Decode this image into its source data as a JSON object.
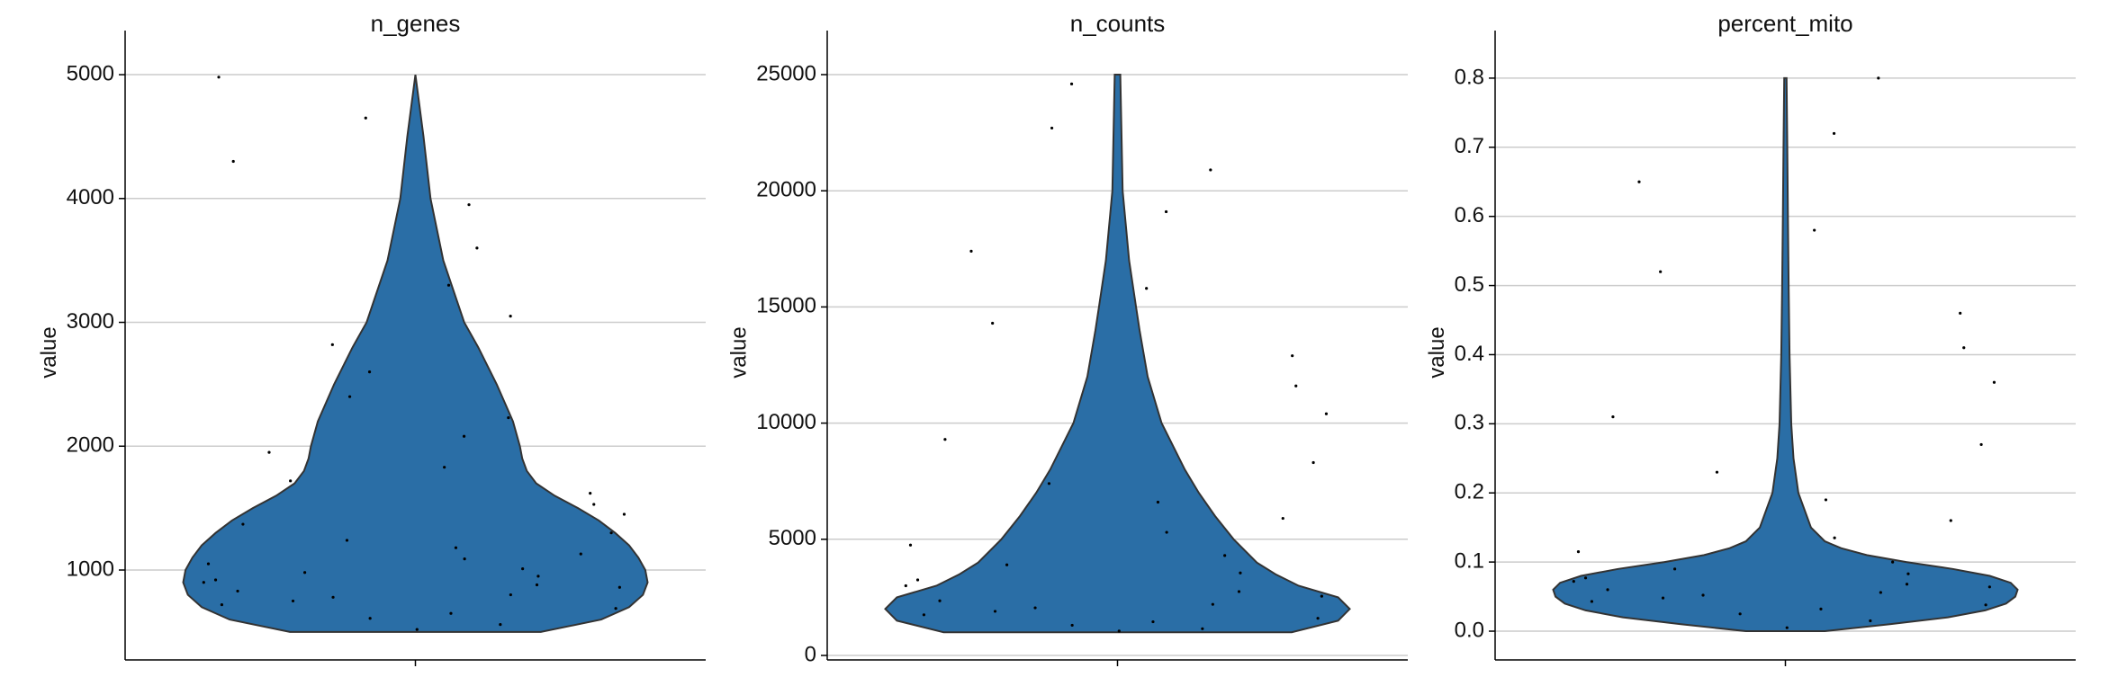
{
  "chart_data": [
    {
      "type": "violin",
      "title": "n_genes",
      "ylabel": "value",
      "ylim": [
        274,
        5240
      ],
      "yticks": [
        1000,
        2000,
        3000,
        4000,
        5000
      ],
      "grid": true,
      "color": "#2a6ea6",
      "point_color": "#000000",
      "violin": {
        "y": [
          500,
          600,
          700,
          800,
          900,
          1000,
          1100,
          1200,
          1300,
          1400,
          1500,
          1600,
          1700,
          1800,
          1900,
          2000,
          2200,
          2500,
          2800,
          3000,
          3500,
          4000,
          4500,
          5000
        ],
        "width": [
          0.54,
          0.8,
          0.92,
          0.98,
          1.0,
          0.99,
          0.96,
          0.92,
          0.86,
          0.79,
          0.7,
          0.6,
          0.52,
          0.48,
          0.46,
          0.45,
          0.42,
          0.35,
          0.27,
          0.21,
          0.12,
          0.065,
          0.035,
          0.0
        ]
      },
      "points": [
        520,
        560,
        610,
        650,
        690,
        720,
        750,
        780,
        800,
        830,
        860,
        880,
        900,
        920,
        950,
        980,
        1010,
        1050,
        1090,
        1130,
        1180,
        1240,
        1300,
        1370,
        1450,
        1530,
        1620,
        1720,
        1830,
        1950,
        2080,
        2230,
        2400,
        2600,
        2820,
        3050,
        3300,
        3600,
        3950,
        4300,
        4650,
        4980
      ]
    },
    {
      "type": "violin",
      "title": "n_counts",
      "ylabel": "value",
      "ylim": [
        -193,
        26277
      ],
      "yticks": [
        0,
        5000,
        10000,
        15000,
        20000,
        25000
      ],
      "grid": true,
      "color": "#2a6ea6",
      "point_color": "#000000",
      "violin": {
        "y": [
          1000,
          1500,
          2000,
          2500,
          3000,
          3500,
          4000,
          5000,
          6000,
          7000,
          8000,
          10000,
          12000,
          14000,
          15000,
          17000,
          20000,
          25000
        ],
        "width": [
          0.75,
          0.95,
          1.0,
          0.95,
          0.78,
          0.68,
          0.6,
          0.5,
          0.42,
          0.35,
          0.29,
          0.19,
          0.13,
          0.095,
          0.08,
          0.05,
          0.022,
          0.012
        ]
      },
      "points": [
        1050,
        1150,
        1300,
        1450,
        1600,
        1750,
        1900,
        2050,
        2200,
        2350,
        2550,
        2750,
        3000,
        3250,
        3550,
        3900,
        4300,
        4750,
        5300,
        5900,
        6600,
        7400,
        8300,
        9300,
        10400,
        11600,
        12900,
        14300,
        15800,
        17400,
        19100,
        20900,
        22700,
        24600
      ]
    },
    {
      "type": "violin",
      "title": "percent_mito",
      "ylabel": "value",
      "ylim": [
        -0.0416,
        0.848
      ],
      "yticks": [
        {
          "value": 0,
          "label": "0.0"
        },
        0.1,
        0.2,
        0.3,
        0.4,
        0.5,
        0.6,
        0.7,
        0.8
      ],
      "grid": true,
      "color": "#2a6ea6",
      "point_color": "#000000",
      "violin": {
        "y": [
          0.0,
          0.01,
          0.02,
          0.03,
          0.04,
          0.05,
          0.06,
          0.07,
          0.08,
          0.09,
          0.1,
          0.11,
          0.12,
          0.13,
          0.15,
          0.2,
          0.25,
          0.3,
          0.4,
          0.5,
          0.6,
          0.7,
          0.8
        ],
        "width": [
          0.17,
          0.45,
          0.7,
          0.86,
          0.95,
          0.99,
          1.0,
          0.97,
          0.88,
          0.72,
          0.52,
          0.35,
          0.24,
          0.17,
          0.11,
          0.056,
          0.035,
          0.025,
          0.018,
          0.014,
          0.011,
          0.008,
          0.005
        ]
      },
      "points": [
        0.005,
        0.015,
        0.025,
        0.032,
        0.038,
        0.043,
        0.048,
        0.052,
        0.056,
        0.06,
        0.064,
        0.068,
        0.072,
        0.077,
        0.083,
        0.09,
        0.1,
        0.115,
        0.135,
        0.16,
        0.19,
        0.23,
        0.27,
        0.31,
        0.36,
        0.41,
        0.46,
        0.52,
        0.58,
        0.65,
        0.72,
        0.8
      ]
    }
  ]
}
